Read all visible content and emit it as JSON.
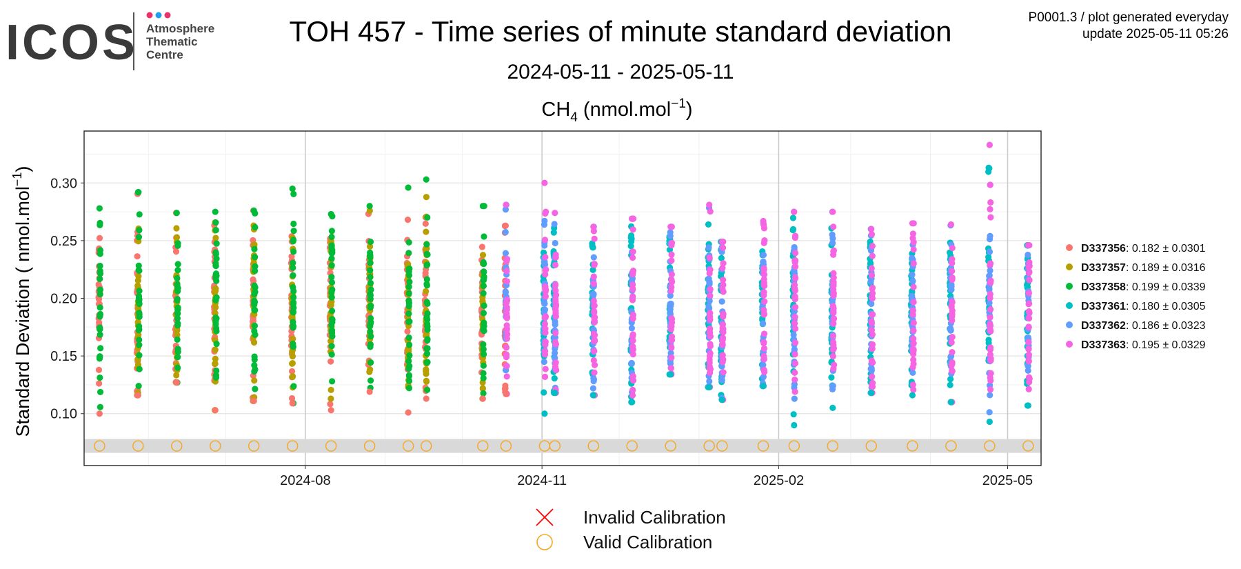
{
  "header": {
    "logo_word": "ICOS",
    "logo_sub": [
      "Atmosphere",
      "Thematic",
      "Centre"
    ],
    "logo_dot_colors": [
      "#e8336a",
      "#1fa0e8",
      "#e8336a"
    ],
    "meta_line1": "P0001.3 / plot generated everyday",
    "meta_line2": "update  2025-05-11 05:26"
  },
  "chart_data": {
    "type": "scatter",
    "title": "TOH 457 - Time series of minute standard deviation",
    "subtitle": "2024-05-11 - 2025-05-11",
    "panel_title": "CH4 (nmol.mol-1)",
    "ylabel": "Standard Deviation ( nmol.mol-1)",
    "xlabel": "",
    "x_range": [
      "2024-05-11",
      "2025-05-11"
    ],
    "ylim": [
      0.055,
      0.345
    ],
    "x_ticks": [
      "2024-08",
      "2024-11",
      "2025-02",
      "2025-05"
    ],
    "y_ticks": [
      0.1,
      0.15,
      0.2,
      0.25,
      0.3
    ],
    "grid": true,
    "legend_position": "right",
    "series": [
      {
        "name": "D337356",
        "color": "#f8766d",
        "mean": "0.182",
        "sd": "0.0301",
        "label": "D337356: 0.182 ± 0.0301"
      },
      {
        "name": "D337357",
        "color": "#b79f00",
        "mean": "0.189",
        "sd": "0.0316",
        "label": "D337357: 0.189 ± 0.0316"
      },
      {
        "name": "D337358",
        "color": "#00ba38",
        "mean": "0.199",
        "sd": "0.0339",
        "label": "D337358: 0.199 ± 0.0339"
      },
      {
        "name": "D337361",
        "color": "#00bfc4",
        "mean": "0.180",
        "sd": "0.0305",
        "label": "D337361: 0.180 ± 0.0305"
      },
      {
        "name": "D337362",
        "color": "#619cff",
        "mean": "0.186",
        "sd": "0.0323",
        "label": "D337362: 0.186 ± 0.0323"
      },
      {
        "name": "D337363",
        "color": "#f564e3",
        "mean": "0.195",
        "sd": "0.0329",
        "label": "D337363: 0.195 ± 0.0329"
      }
    ],
    "sessions": [
      {
        "date": "2024-05-13",
        "series": [
          "D337356",
          "D337358"
        ],
        "range": [
          0.1,
          0.278
        ]
      },
      {
        "date": "2024-05-28",
        "series": [
          "D337356",
          "D337357",
          "D337358"
        ],
        "range": [
          0.116,
          0.292
        ]
      },
      {
        "date": "2024-06-12",
        "series": [
          "D337356",
          "D337357",
          "D337358"
        ],
        "range": [
          0.127,
          0.274
        ]
      },
      {
        "date": "2024-06-27",
        "series": [
          "D337356",
          "D337357",
          "D337358"
        ],
        "range": [
          0.103,
          0.275
        ]
      },
      {
        "date": "2024-07-12",
        "series": [
          "D337356",
          "D337357",
          "D337358"
        ],
        "range": [
          0.111,
          0.276
        ]
      },
      {
        "date": "2024-07-27",
        "series": [
          "D337356",
          "D337357",
          "D337358"
        ],
        "range": [
          0.109,
          0.295
        ]
      },
      {
        "date": "2024-08-11",
        "series": [
          "D337356",
          "D337357",
          "D337358"
        ],
        "range": [
          0.103,
          0.273
        ]
      },
      {
        "date": "2024-08-26",
        "series": [
          "D337356",
          "D337357",
          "D337358"
        ],
        "range": [
          0.119,
          0.28
        ]
      },
      {
        "date": "2024-09-10",
        "series": [
          "D337356",
          "D337357",
          "D337358"
        ],
        "range": [
          0.101,
          0.296
        ]
      },
      {
        "date": "2024-09-17",
        "series": [
          "D337356",
          "D337357",
          "D337358"
        ],
        "range": [
          0.113,
          0.303
        ]
      },
      {
        "date": "2024-10-09",
        "series": [
          "D337356",
          "D337357",
          "D337358"
        ],
        "range": [
          0.113,
          0.28
        ]
      },
      {
        "date": "2024-10-18",
        "series": [
          "D337356",
          "D337362",
          "D337363"
        ],
        "range": [
          0.117,
          0.281
        ]
      },
      {
        "date": "2024-11-02",
        "series": [
          "D337361",
          "D337362",
          "D337363"
        ],
        "range": [
          0.1,
          0.3
        ]
      },
      {
        "date": "2024-11-06",
        "series": [
          "D337361",
          "D337362",
          "D337363"
        ],
        "range": [
          0.118,
          0.274
        ]
      },
      {
        "date": "2024-11-21",
        "series": [
          "D337361",
          "D337362",
          "D337363"
        ],
        "range": [
          0.116,
          0.262
        ]
      },
      {
        "date": "2024-12-06",
        "series": [
          "D337361",
          "D337362",
          "D337363"
        ],
        "range": [
          0.11,
          0.269
        ]
      },
      {
        "date": "2024-12-21",
        "series": [
          "D337361",
          "D337362",
          "D337363"
        ],
        "range": [
          0.134,
          0.262
        ]
      },
      {
        "date": "2025-01-05",
        "series": [
          "D337361",
          "D337362",
          "D337363"
        ],
        "range": [
          0.123,
          0.281
        ]
      },
      {
        "date": "2025-01-10",
        "series": [
          "D337361",
          "D337362",
          "D337363"
        ],
        "range": [
          0.112,
          0.249
        ]
      },
      {
        "date": "2025-01-26",
        "series": [
          "D337361",
          "D337362",
          "D337363"
        ],
        "range": [
          0.124,
          0.267
        ]
      },
      {
        "date": "2025-02-07",
        "series": [
          "D337361",
          "D337362",
          "D337363"
        ],
        "range": [
          0.09,
          0.275
        ]
      },
      {
        "date": "2025-02-22",
        "series": [
          "D337361",
          "D337362",
          "D337363"
        ],
        "range": [
          0.105,
          0.275
        ]
      },
      {
        "date": "2025-03-09",
        "series": [
          "D337361",
          "D337362",
          "D337363"
        ],
        "range": [
          0.118,
          0.26
        ]
      },
      {
        "date": "2025-03-25",
        "series": [
          "D337361",
          "D337362",
          "D337363"
        ],
        "range": [
          0.116,
          0.265
        ]
      },
      {
        "date": "2025-04-09",
        "series": [
          "D337361",
          "D337362",
          "D337363"
        ],
        "range": [
          0.11,
          0.264
        ]
      },
      {
        "date": "2025-04-24",
        "series": [
          "D337361",
          "D337362",
          "D337363"
        ],
        "range": [
          0.093,
          0.333
        ]
      },
      {
        "date": "2025-05-09",
        "series": [
          "D337361",
          "D337362",
          "D337363"
        ],
        "range": [
          0.107,
          0.246
        ]
      }
    ],
    "calibration_y": 0.072,
    "calibration_band": [
      0.066,
      0.078
    ],
    "calibration_marker_color": "#f5a623",
    "invalid_marker_color": "#ff0000",
    "calibration_legend": [
      {
        "label": "Invalid Calibration",
        "marker": "cross"
      },
      {
        "label": "Valid Calibration",
        "marker": "circle"
      }
    ]
  }
}
